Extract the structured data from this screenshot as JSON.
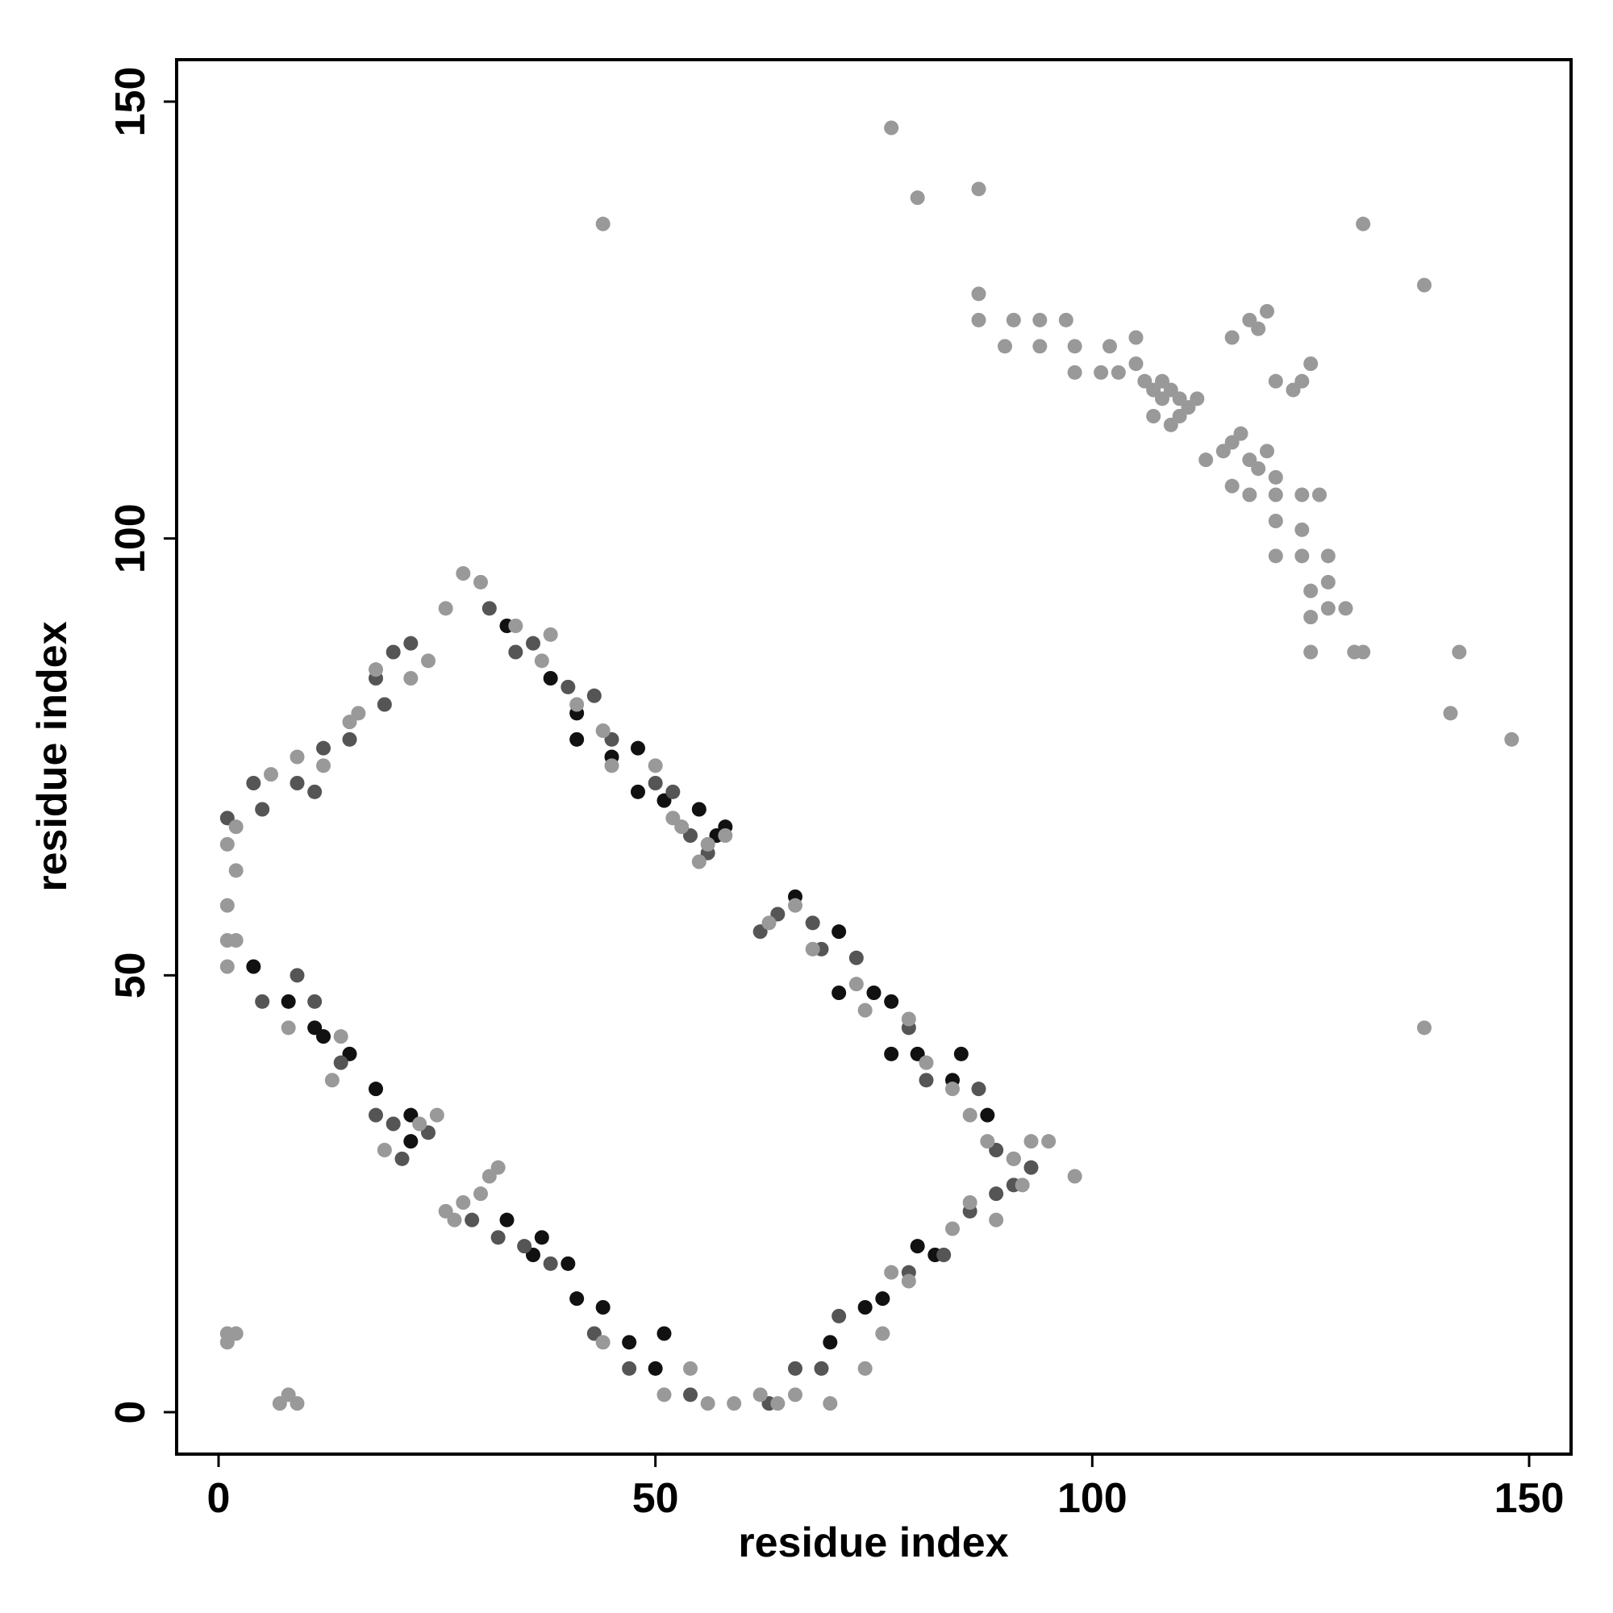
{
  "chart_data": {
    "type": "scatter",
    "x_label": "residue index",
    "y_label": "residue index",
    "xlim": [
      -4.8,
      154.8
    ],
    "ylim": [
      -4.8,
      154.8
    ],
    "xticks": [
      0,
      50,
      100,
      150
    ],
    "yticks": [
      0,
      50,
      100,
      150
    ],
    "series": [
      {
        "color": "#111111",
        "x": [
          4,
          8,
          11,
          12,
          15,
          18,
          22,
          22,
          33,
          36,
          37,
          40,
          41,
          44,
          47,
          50,
          51,
          33,
          38,
          41,
          41,
          45,
          48,
          48,
          51,
          55,
          58,
          66,
          71,
          71,
          75,
          77,
          77,
          80,
          84,
          85,
          88,
          82,
          80,
          76,
          74,
          70,
          57
        ],
        "values": [
          51,
          47,
          44,
          43,
          41,
          37,
          34,
          31,
          22,
          18,
          20,
          17,
          13,
          12,
          8,
          5,
          9,
          90,
          84,
          80,
          77,
          75,
          76,
          71,
          70,
          69,
          67,
          59,
          55,
          48,
          48,
          47,
          41,
          41,
          38,
          41,
          34,
          18,
          19,
          13,
          12,
          8,
          66
        ]
      },
      {
        "color": "#555555",
        "x": [
          5,
          9,
          11,
          14,
          18,
          20,
          21,
          24,
          29,
          32,
          35,
          38,
          43,
          47,
          54,
          66,
          69,
          71,
          79,
          83,
          86,
          89,
          91,
          93,
          1,
          4,
          5,
          9,
          11,
          12,
          15,
          18,
          19,
          20,
          22,
          31,
          34,
          36,
          40,
          43,
          45,
          50,
          52,
          54,
          56,
          62,
          64,
          68,
          69,
          73,
          79,
          81,
          87,
          89,
          91,
          63
        ],
        "values": [
          47,
          50,
          47,
          40,
          34,
          33,
          29,
          32,
          22,
          20,
          19,
          17,
          9,
          5,
          2,
          5,
          5,
          11,
          16,
          18,
          23,
          25,
          26,
          28,
          68,
          72,
          69,
          72,
          71,
          76,
          77,
          84,
          81,
          87,
          88,
          92,
          87,
          88,
          83,
          82,
          77,
          72,
          71,
          66,
          64,
          55,
          57,
          56,
          53,
          52,
          44,
          38,
          37,
          30,
          29,
          1
        ]
      },
      {
        "color": "#999999",
        "x": [
          1,
          2,
          1,
          1,
          1,
          2,
          1,
          1,
          2,
          7,
          8,
          9,
          8,
          13,
          14,
          19,
          23,
          25,
          26,
          27,
          28,
          30,
          31,
          32,
          44,
          51,
          54,
          56,
          59,
          62,
          64,
          66,
          70,
          74,
          76,
          77,
          79,
          84,
          86,
          89,
          92,
          95,
          98,
          2,
          6,
          9,
          12,
          15,
          16,
          18,
          22,
          24,
          26,
          28,
          30,
          34,
          37,
          38,
          41,
          44,
          45,
          50,
          52,
          53,
          55,
          56,
          58,
          63,
          66,
          68,
          73,
          74,
          79,
          81,
          84,
          86,
          88,
          91,
          93,
          77,
          80,
          87,
          44,
          131,
          138,
          87,
          87,
          91,
          94,
          97,
          90,
          94,
          98,
          102,
          105,
          105,
          98,
          101,
          103,
          106,
          107,
          108,
          109,
          110,
          111,
          112,
          108,
          107,
          109,
          110,
          116,
          118,
          120,
          119,
          121,
          123,
          124,
          125,
          113,
          115,
          116,
          117,
          118,
          119,
          120,
          121,
          116,
          118,
          121,
          124,
          126,
          121,
          124,
          121,
          124,
          127,
          125,
          127,
          125,
          127,
          129,
          125,
          131,
          130,
          142,
          141,
          148,
          138
        ],
        "values": [
          65,
          62,
          58,
          54,
          51,
          54,
          8,
          9,
          9,
          1,
          2,
          1,
          44,
          38,
          43,
          30,
          33,
          34,
          23,
          22,
          24,
          25,
          27,
          28,
          8,
          2,
          5,
          1,
          1,
          2,
          1,
          2,
          1,
          5,
          9,
          16,
          15,
          21,
          24,
          22,
          26,
          31,
          27,
          67,
          73,
          75,
          74,
          79,
          80,
          85,
          84,
          86,
          92,
          96,
          95,
          90,
          86,
          89,
          81,
          78,
          74,
          74,
          68,
          67,
          63,
          65,
          66,
          56,
          58,
          53,
          49,
          46,
          45,
          40,
          37,
          34,
          31,
          29,
          31,
          147,
          139,
          140,
          136,
          136,
          129,
          128,
          125,
          125,
          125,
          125,
          122,
          122,
          122,
          122,
          123,
          120,
          119,
          119,
          119,
          118,
          117,
          116,
          117,
          116,
          115,
          116,
          118,
          114,
          113,
          114,
          123,
          125,
          126,
          124,
          118,
          117,
          118,
          120,
          109,
          110,
          111,
          112,
          109,
          108,
          110,
          107,
          106,
          105,
          105,
          105,
          105,
          102,
          101,
          98,
          98,
          98,
          94,
          95,
          91,
          92,
          92,
          87,
          87,
          87,
          87,
          80,
          77,
          44
        ]
      }
    ]
  }
}
